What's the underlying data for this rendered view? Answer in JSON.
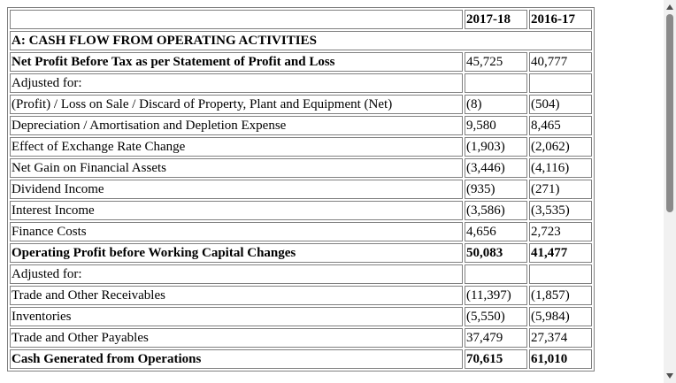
{
  "table": {
    "columns": [
      "2017-18",
      "2016-17"
    ],
    "rows": [
      {
        "label": "A: CASH FLOW FROM OPERATING ACTIVITIES",
        "bold": true,
        "section": true
      },
      {
        "label": "Net Profit Before Tax as per Statement of Profit and Loss",
        "bold": true,
        "values": [
          "45,725",
          "40,777"
        ]
      },
      {
        "label": "Adjusted for:"
      },
      {
        "label": "(Profit) / Loss on Sale / Discard of Property, Plant and Equipment (Net)",
        "values": [
          "(8)",
          "(504)"
        ]
      },
      {
        "label": "Depreciation / Amortisation and Depletion Expense",
        "values": [
          "9,580",
          "8,465"
        ]
      },
      {
        "label": "Effect of Exchange Rate Change",
        "values": [
          "(1,903)",
          "(2,062)"
        ]
      },
      {
        "label": "Net Gain on Financial Assets",
        "values": [
          "(3,446)",
          "(4,116)"
        ]
      },
      {
        "label": "Dividend Income",
        "values": [
          "(935)",
          "(271)"
        ]
      },
      {
        "label": "Interest Income",
        "values": [
          "(3,586)",
          "(3,535)"
        ]
      },
      {
        "label": "Finance Costs",
        "values": [
          "4,656",
          "2,723"
        ]
      },
      {
        "label": "Operating Profit before Working Capital Changes",
        "bold": true,
        "values": [
          "50,083",
          "41,477"
        ],
        "bold_values": true
      },
      {
        "label": "Adjusted for:"
      },
      {
        "label": "Trade and Other Receivables",
        "values": [
          "(11,397)",
          "(1,857)"
        ]
      },
      {
        "label": "Inventories",
        "values": [
          "(5,550)",
          "(5,984)"
        ]
      },
      {
        "label": "Trade and Other Payables",
        "values": [
          "37,479",
          "27,374"
        ]
      },
      {
        "label": "Cash Generated from Operations",
        "bold": true,
        "values": [
          "70,615",
          "61,010"
        ],
        "bold_values": true
      }
    ]
  }
}
